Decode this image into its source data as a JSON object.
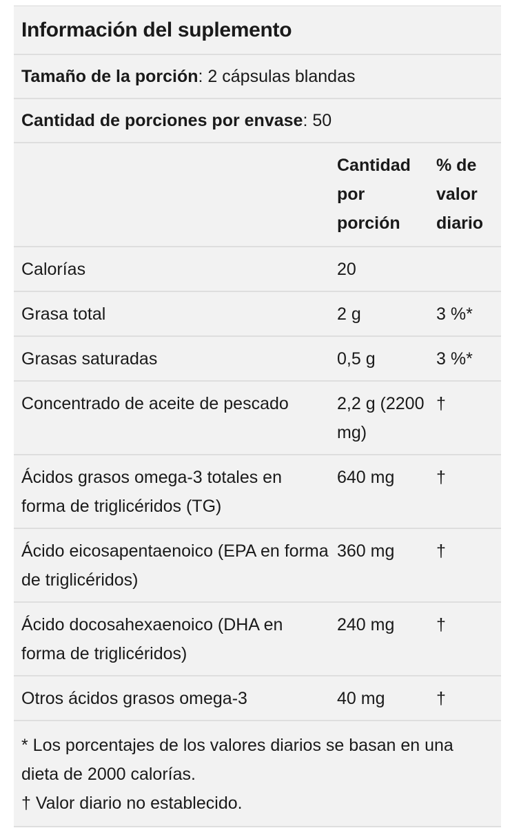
{
  "title": "Información del suplemento",
  "serving_size": {
    "label": "Tamaño de la porción",
    "sep": ":",
    "value": " 2 cápsulas blandas"
  },
  "servings_per_container": {
    "label": "Cantidad de porciones por envase",
    "sep": ":",
    "value": " 50"
  },
  "columns": {
    "amount_lines": [
      "Cantidad",
      "por",
      "porción"
    ],
    "daily_value_lines": [
      "% de",
      "valor",
      "diario"
    ]
  },
  "rows": [
    {
      "name": "Calorías",
      "amount": "20",
      "dv": ""
    },
    {
      "name": "Grasa total",
      "amount": "2 g",
      "dv": "3 %*"
    },
    {
      "name": "Grasas saturadas",
      "amount": "0,5 g",
      "dv": "3 %*"
    },
    {
      "name": "Concentrado de aceite de pescado",
      "amount": "2,2 g (2200 mg)",
      "dv": "†"
    },
    {
      "name": "Ácidos grasos omega-3 totales en forma de triglicéridos (TG)",
      "amount": "640 mg",
      "dv": "†"
    },
    {
      "name": "Ácido eicosapentaenoico (EPA en forma de triglicéridos)",
      "amount": "360 mg",
      "dv": "†"
    },
    {
      "name": "Ácido docosahexaenoico (DHA en forma de triglicéridos)",
      "amount": "240 mg",
      "dv": "†"
    },
    {
      "name": "Otros ácidos grasos omega-3",
      "amount": "40 mg",
      "dv": "†"
    }
  ],
  "footnotes": [
    "* Los porcentajes de los valores diarios se basan en una dieta de 2000 calorías.",
    "† Valor diario no establecido."
  ]
}
